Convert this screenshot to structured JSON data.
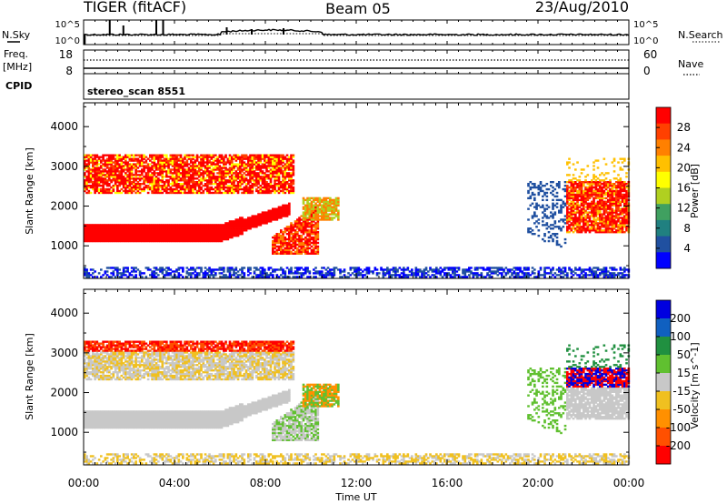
{
  "header": {
    "radar_title": "TIGER (fitACF)",
    "beam": "Beam 05",
    "date": "23/Aug/2010"
  },
  "noise_panel": {
    "left_label": "N.Sky",
    "right_label": "N.Search",
    "left_ticks": [
      "10^5",
      "10^0"
    ],
    "right_ticks": [
      "10^5",
      "10^0"
    ]
  },
  "freq_panel": {
    "left_label_line1": "Freq.",
    "left_label_line2": "[MHz]",
    "left_ticks": [
      "18",
      "8"
    ],
    "right_label": "Nave",
    "right_ticks": [
      "60",
      "0"
    ],
    "cpid_label": "CPID",
    "cpid_value": "stereo_scan 8551"
  },
  "chart_data": [
    {
      "type": "heatmap",
      "name": "power",
      "ylabel": "Slant Range [km]",
      "ylim": [
        180,
        4600
      ],
      "yticks": [
        "1000",
        "2000",
        "3000",
        "4000"
      ],
      "xlim": [
        0,
        24
      ],
      "colorbar": {
        "label": "Power [dB]",
        "ticks": [
          "28",
          "24",
          "20",
          "16",
          "12",
          "8",
          "4"
        ],
        "colors": [
          "#ff0000",
          "#ff4000",
          "#ff8000",
          "#ffc000",
          "#ffff00",
          "#b0d020",
          "#40a060",
          "#208080",
          "#2050a0",
          "#0000ff"
        ]
      }
    },
    {
      "type": "heatmap",
      "name": "velocity",
      "ylabel": "Slant Range [km]",
      "ylim": [
        180,
        4600
      ],
      "yticks": [
        "1000",
        "2000",
        "3000",
        "4000"
      ],
      "xlim": [
        0,
        24
      ],
      "colorbar": {
        "label": "Velocity [m s^-1]",
        "ticks": [
          "200",
          "100",
          "50",
          "15",
          "-15",
          "-50",
          "-100",
          "-200"
        ],
        "colors": [
          "#0000e0",
          "#1060c0",
          "#209040",
          "#60c030",
          "#c8c8c8",
          "#f0c020",
          "#ff9000",
          "#ff5000",
          "#ff0000"
        ]
      }
    }
  ],
  "xaxis": {
    "label": "Time UT",
    "ticks": [
      "00:00",
      "04:00",
      "08:00",
      "12:00",
      "16:00",
      "20:00",
      "00:00"
    ]
  }
}
